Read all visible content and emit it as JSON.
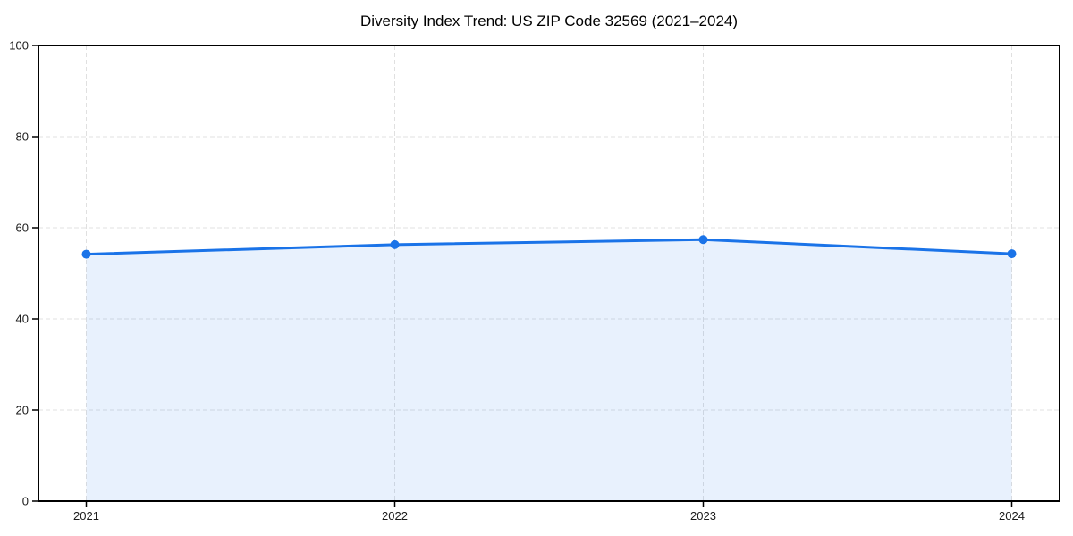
{
  "chart_data": {
    "type": "area",
    "title": "Diversity Index Trend: US ZIP Code 32569 (2021–2024)",
    "categories": [
      "2021",
      "2022",
      "2023",
      "2024"
    ],
    "series": [
      {
        "name": "Diversity Index",
        "values": [
          54.2,
          56.3,
          57.4,
          54.3
        ]
      }
    ],
    "xlabel": "",
    "ylabel": "",
    "ylim": [
      0,
      100
    ],
    "yticks": [
      0,
      20,
      40,
      60,
      80,
      100
    ],
    "grid": true,
    "grid_style": "dashed",
    "legend_position": "none",
    "colors": {
      "line": "#1a73e8",
      "marker": "#1a73e8",
      "fill": "#1a73e8",
      "fill_opacity": 0.1,
      "grid": "#e0e0e0",
      "axis": "#000000",
      "text": "#1a1a1a",
      "background": "#ffffff"
    }
  }
}
